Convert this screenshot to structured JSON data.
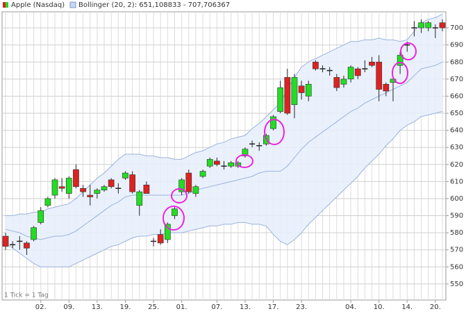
{
  "chart_data": {
    "type": "candlestick",
    "categories": [
      null,
      null,
      null,
      null,
      null,
      "02.",
      null,
      null,
      null,
      "09.",
      null,
      null,
      null,
      "13.",
      null,
      null,
      null,
      "19.",
      null,
      null,
      null,
      "25.",
      null,
      null,
      null,
      "01.",
      null,
      null,
      null,
      null,
      "07.",
      null,
      null,
      null,
      "13.",
      null,
      null,
      null,
      "17.",
      null,
      null,
      null,
      "23.",
      null,
      null,
      null,
      null,
      null,
      null,
      "04.",
      null,
      null,
      null,
      "10.",
      null,
      null,
      null,
      "14.",
      null,
      null,
      null,
      "20.",
      null
    ],
    "series": [
      {
        "name": "Apple (Nasdaq)",
        "up_color": "#22dd22",
        "down_color": "#dd2222",
        "open": [
          578,
          573,
          575,
          574,
          576,
          586,
          596,
          602,
          607,
          603,
          617,
          606,
          602,
          603,
          605,
          611,
          606,
          612,
          614,
          596,
          608,
          575,
          579,
          576,
          590,
          604,
          615,
          603,
          613,
          619,
          622,
          619,
          619,
          619,
          625,
          632,
          631,
          632,
          641,
          651,
          671,
          655,
          666,
          660,
          680,
          676,
          675,
          671,
          667,
          670,
          676,
          676,
          680,
          680,
          667,
          668,
          678,
          690,
          700,
          700,
          700,
          700,
          703
        ],
        "high": [
          580,
          575,
          578,
          575,
          584,
          595,
          601,
          612,
          612,
          613,
          620,
          608,
          608,
          606,
          608,
          612,
          609,
          616,
          616,
          605,
          610,
          577,
          582,
          586,
          595,
          612,
          617,
          608,
          617,
          624,
          624,
          622,
          622,
          622,
          630,
          634,
          633,
          638,
          649,
          669,
          676,
          673,
          669,
          669,
          681,
          678,
          677,
          673,
          672,
          678,
          677,
          681,
          683,
          684,
          668,
          671,
          686,
          692,
          704,
          705,
          704,
          702,
          705
        ],
        "low": [
          570,
          571,
          570,
          567,
          575,
          585,
          595,
          600,
          604,
          600,
          606,
          601,
          596,
          600,
          604,
          606,
          603,
          611,
          603,
          590,
          603,
          572,
          573,
          574,
          588,
          602,
          603,
          601,
          612,
          618,
          619,
          617,
          618,
          618,
          624,
          630,
          628,
          631,
          640,
          650,
          649,
          647,
          658,
          657,
          675,
          674,
          672,
          663,
          665,
          668,
          670,
          674,
          677,
          657,
          660,
          657,
          673,
          686,
          695,
          697,
          698,
          694,
          698
        ],
        "close": [
          572,
          573,
          575,
          571,
          583,
          593,
          600,
          611,
          606,
          612,
          607,
          604,
          601,
          605,
          607,
          607,
          606,
          615,
          604,
          604,
          603,
          575,
          574,
          585,
          594,
          611,
          604,
          607,
          616,
          623,
          620,
          619,
          621,
          621,
          629,
          632,
          631,
          637,
          648,
          665,
          650,
          671,
          662,
          667,
          676,
          676,
          675,
          665,
          670,
          677,
          672,
          676,
          678,
          664,
          663,
          670,
          684,
          690,
          700,
          703,
          703,
          700,
          700
        ]
      }
    ],
    "bands": {
      "name": "Bollinger (20, 2): 651,108833 - 707,706367",
      "color": "#9bb3dd",
      "fill": "#e6eefb",
      "upper": [
        590,
        590,
        591,
        591,
        592,
        592,
        594,
        595,
        596,
        597,
        600,
        604,
        608,
        612,
        615,
        619,
        623,
        626,
        626,
        626,
        625,
        625,
        624,
        624,
        623,
        623,
        625,
        627,
        628,
        630,
        632,
        633,
        635,
        636,
        637,
        641,
        644,
        648,
        652,
        656,
        664,
        671,
        677,
        680,
        682,
        684,
        686,
        688,
        690,
        692,
        692,
        693,
        693,
        694,
        693,
        693,
        692,
        693,
        698,
        703,
        705,
        706,
        708
      ],
      "middle": [
        582,
        581,
        580,
        578,
        577,
        576,
        577,
        578,
        578,
        579,
        581,
        584,
        587,
        590,
        593,
        596,
        598,
        601,
        602,
        602,
        602,
        602,
        602,
        602,
        602,
        602,
        603,
        605,
        606,
        607,
        608,
        609,
        610,
        611,
        612,
        613,
        615,
        616,
        616,
        616,
        619,
        624,
        629,
        633,
        636,
        639,
        642,
        645,
        648,
        651,
        653,
        656,
        658,
        660,
        662,
        664,
        666,
        668,
        672,
        676,
        677,
        678,
        680
      ],
      "lower": [
        574,
        571,
        568,
        565,
        562,
        560,
        560,
        560,
        560,
        560,
        562,
        564,
        566,
        568,
        570,
        572,
        573,
        575,
        577,
        578,
        578,
        579,
        579,
        580,
        580,
        580,
        581,
        582,
        583,
        584,
        584,
        585,
        585,
        586,
        586,
        585,
        585,
        584,
        579,
        575,
        573,
        576,
        580,
        585,
        589,
        593,
        597,
        601,
        605,
        609,
        613,
        618,
        622,
        626,
        631,
        635,
        640,
        643,
        645,
        648,
        649,
        650,
        651
      ]
    },
    "ylim": [
      540.6,
      709.4
    ],
    "yticks": [
      550,
      560,
      570,
      580,
      590,
      600,
      610,
      620,
      630,
      640,
      650,
      660,
      670,
      680,
      690,
      700
    ],
    "grid": true,
    "annotation": "1 Tick = 1 Tag"
  }
}
